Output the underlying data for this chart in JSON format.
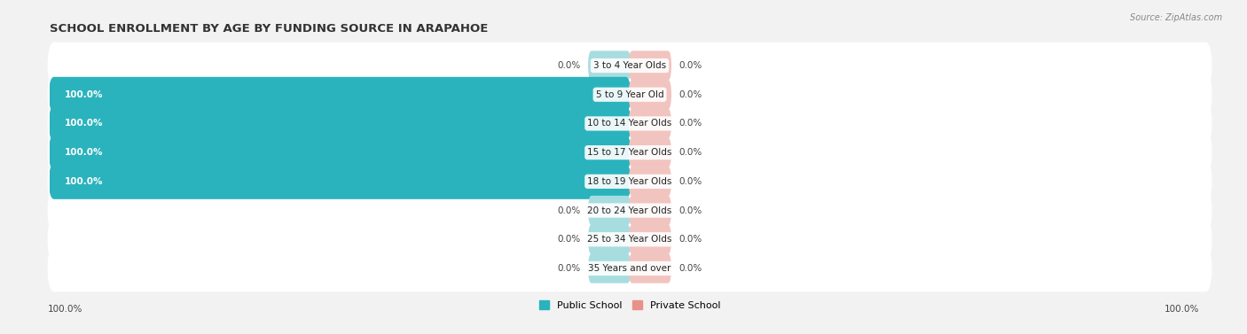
{
  "title": "SCHOOL ENROLLMENT BY AGE BY FUNDING SOURCE IN ARAPAHOE",
  "source": "Source: ZipAtlas.com",
  "categories": [
    "3 to 4 Year Olds",
    "5 to 9 Year Old",
    "10 to 14 Year Olds",
    "15 to 17 Year Olds",
    "18 to 19 Year Olds",
    "20 to 24 Year Olds",
    "25 to 34 Year Olds",
    "35 Years and over"
  ],
  "public_values": [
    0.0,
    100.0,
    100.0,
    100.0,
    100.0,
    0.0,
    0.0,
    0.0
  ],
  "private_values": [
    0.0,
    0.0,
    0.0,
    0.0,
    0.0,
    0.0,
    0.0,
    0.0
  ],
  "public_color_full": "#2ab3bc",
  "public_color_empty": "#a8dde0",
  "private_color_full": "#e8908a",
  "private_color_empty": "#f2c4c0",
  "bg_color": "#f2f2f2",
  "bar_height": 0.62,
  "label_fontsize": 7.5,
  "title_fontsize": 9.5,
  "legend_fontsize": 8,
  "bottom_left_label": "100.0%",
  "bottom_right_label": "100.0%"
}
